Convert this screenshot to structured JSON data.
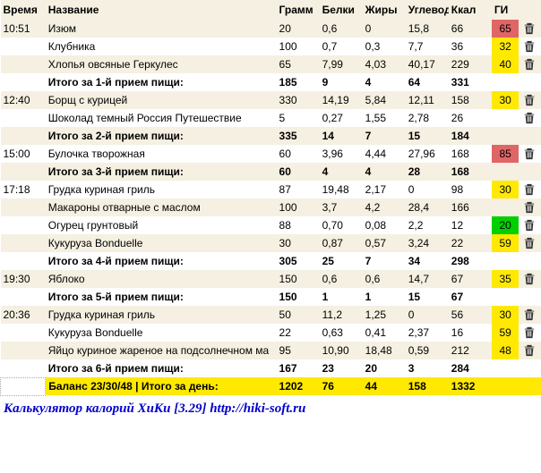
{
  "columns": {
    "time": "Время",
    "name": "Название",
    "gram": "Грамм",
    "protein": "Белки",
    "fat": "Жиры",
    "carb": "Углеводы",
    "kcal": "Ккал",
    "gi": "ГИ",
    "del": ""
  },
  "gi_colors": {
    "red": "#e06666",
    "yellow": "#ffe900",
    "green": "#00d000"
  },
  "meals": [
    {
      "time": "10:51",
      "items": [
        {
          "name": "Изюм",
          "gram": "20",
          "protein": "0,6",
          "fat": "0",
          "carb": "15,8",
          "kcal": "66",
          "gi": "65",
          "gi_level": "red"
        },
        {
          "name": "Клубника",
          "gram": "100",
          "protein": "0,7",
          "fat": "0,3",
          "carb": "7,7",
          "kcal": "36",
          "gi": "32",
          "gi_level": "yellow"
        },
        {
          "name": "Хлопья овсяные Геркулес",
          "gram": "65",
          "protein": "7,99",
          "fat": "4,03",
          "carb": "40,17",
          "kcal": "229",
          "gi": "40",
          "gi_level": "yellow"
        }
      ],
      "subtotal": {
        "label": "Итого за 1-й прием пищи:",
        "gram": "185",
        "protein": "9",
        "fat": "4",
        "carb": "64",
        "kcal": "331"
      }
    },
    {
      "time": "12:40",
      "items": [
        {
          "name": "Борщ с курицей",
          "gram": "330",
          "protein": "14,19",
          "fat": "5,84",
          "carb": "12,11",
          "kcal": "158",
          "gi": "30",
          "gi_level": "yellow"
        },
        {
          "name": "Шоколад темный Россия Путешествие",
          "gram": "5",
          "protein": "0,27",
          "fat": "1,55",
          "carb": "2,78",
          "kcal": "26",
          "gi": "",
          "gi_level": ""
        }
      ],
      "subtotal": {
        "label": "Итого за 2-й прием пищи:",
        "gram": "335",
        "protein": "14",
        "fat": "7",
        "carb": "15",
        "kcal": "184"
      }
    },
    {
      "time": "15:00",
      "items": [
        {
          "name": "Булочка творожная",
          "gram": "60",
          "protein": "3,96",
          "fat": "4,44",
          "carb": "27,96",
          "kcal": "168",
          "gi": "85",
          "gi_level": "red"
        }
      ],
      "subtotal": {
        "label": "Итого за 3-й прием пищи:",
        "gram": "60",
        "protein": "4",
        "fat": "4",
        "carb": "28",
        "kcal": "168"
      }
    },
    {
      "time": "17:18",
      "items": [
        {
          "name": "Грудка куриная гриль",
          "gram": "87",
          "protein": "19,48",
          "fat": "2,17",
          "carb": "0",
          "kcal": "98",
          "gi": "30",
          "gi_level": "yellow"
        },
        {
          "name": "Макароны отварные с маслом",
          "gram": "100",
          "protein": "3,7",
          "fat": "4,2",
          "carb": "28,4",
          "kcal": "166",
          "gi": "",
          "gi_level": ""
        },
        {
          "name": "Огурец грунтовый",
          "gram": "88",
          "protein": "0,70",
          "fat": "0,08",
          "carb": "2,2",
          "kcal": "12",
          "gi": "20",
          "gi_level": "green"
        },
        {
          "name": "Кукуруза Bonduelle",
          "gram": "30",
          "protein": "0,87",
          "fat": "0,57",
          "carb": "3,24",
          "kcal": "22",
          "gi": "59",
          "gi_level": "yellow"
        }
      ],
      "subtotal": {
        "label": "Итого за 4-й прием пищи:",
        "gram": "305",
        "protein": "25",
        "fat": "7",
        "carb": "34",
        "kcal": "298"
      }
    },
    {
      "time": "19:30",
      "items": [
        {
          "name": "Яблоко",
          "gram": "150",
          "protein": "0,6",
          "fat": "0,6",
          "carb": "14,7",
          "kcal": "67",
          "gi": "35",
          "gi_level": "yellow"
        }
      ],
      "subtotal": {
        "label": "Итого за 5-й прием пищи:",
        "gram": "150",
        "protein": "1",
        "fat": "1",
        "carb": "15",
        "kcal": "67"
      }
    },
    {
      "time": "20:36",
      "items": [
        {
          "name": "Грудка куриная гриль",
          "gram": "50",
          "protein": "11,2",
          "fat": "1,25",
          "carb": "0",
          "kcal": "56",
          "gi": "30",
          "gi_level": "yellow"
        },
        {
          "name": "Кукуруза Bonduelle",
          "gram": "22",
          "protein": "0,63",
          "fat": "0,41",
          "carb": "2,37",
          "kcal": "16",
          "gi": "59",
          "gi_level": "yellow"
        },
        {
          "name": "Яйцо куриное жареное на подсолнечном ма",
          "gram": "95",
          "protein": "10,90",
          "fat": "18,48",
          "carb": "0,59",
          "kcal": "212",
          "gi": "48",
          "gi_level": "yellow"
        }
      ],
      "subtotal": {
        "label": "Итого за 6-й прием пищи:",
        "gram": "167",
        "protein": "23",
        "fat": "20",
        "carb": "3",
        "kcal": "284"
      }
    }
  ],
  "grand_total": {
    "label": "Баланс 23/30/48  |  Итого за день:",
    "gram": "1202",
    "protein": "76",
    "fat": "44",
    "carb": "158",
    "kcal": "1332"
  },
  "footer": "Калькулятор калорий ХиКи [3.29] http://hiki-soft.ru"
}
